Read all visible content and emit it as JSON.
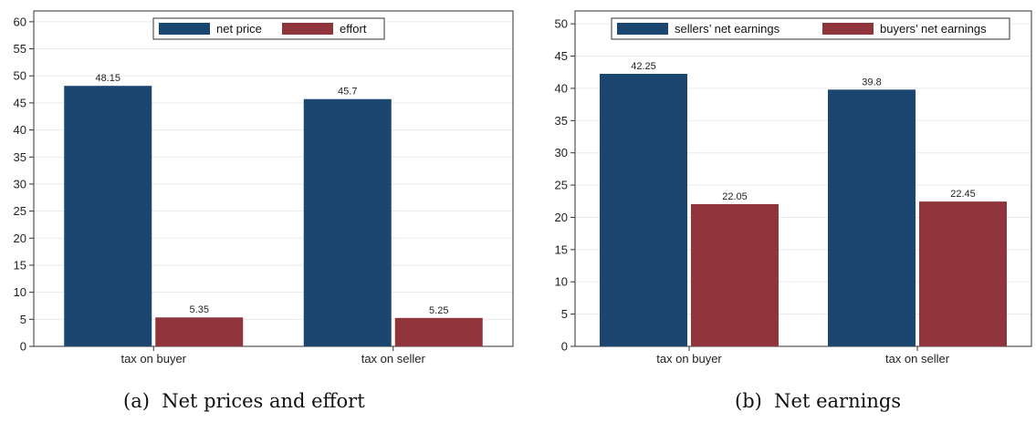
{
  "chart_data": [
    {
      "type": "bar",
      "categories": [
        "tax on buyer",
        "tax on seller"
      ],
      "series": [
        {
          "name": "net price",
          "values": [
            48.15,
            45.7
          ],
          "labels": [
            "48.15",
            "45.7"
          ],
          "color": "#1b4670"
        },
        {
          "name": "effort",
          "values": [
            5.35,
            5.25
          ],
          "labels": [
            "5.35",
            "5.25"
          ],
          "color": "#90353b"
        }
      ],
      "ylim": [
        0,
        62
      ],
      "yticks": [
        "0",
        "5",
        "10",
        "15",
        "20",
        "25",
        "30",
        "35",
        "40",
        "45",
        "50",
        "55",
        "60"
      ],
      "grid": true,
      "legend_position": "top-center",
      "caption": "(a)  Net prices and effort"
    },
    {
      "type": "bar",
      "categories": [
        "tax on buyer",
        "tax on seller"
      ],
      "series": [
        {
          "name": "sellers’ net earnings",
          "values": [
            42.25,
            39.8
          ],
          "labels": [
            "42.25",
            "39.8"
          ],
          "color": "#1b4670"
        },
        {
          "name": "buyers’ net earnings",
          "values": [
            22.05,
            22.45
          ],
          "labels": [
            "22.05",
            "22.45"
          ],
          "color": "#90353b"
        }
      ],
      "ylim": [
        0,
        52
      ],
      "yticks": [
        "0",
        "5",
        "10",
        "15",
        "20",
        "25",
        "30",
        "35",
        "40",
        "45",
        "50"
      ],
      "grid": true,
      "legend_position": "top-center",
      "caption": "(b)  Net earnings"
    }
  ]
}
